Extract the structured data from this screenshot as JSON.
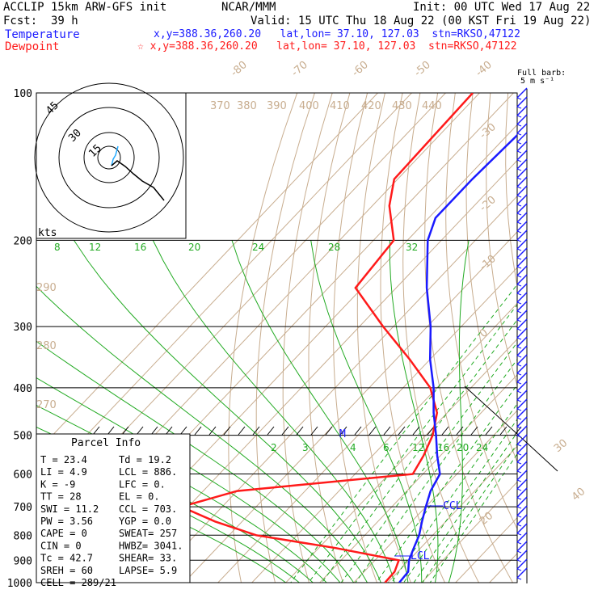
{
  "header": {
    "model": "ACCLIP 15km ARW-GFS init",
    "center": "NCAR/MMM",
    "init": "Init: 00 UTC Wed 17 Aug 22",
    "fcst_label": "Fcst:",
    "fcst_value": "39 h",
    "valid": "Valid: 15 UTC Thu 18 Aug 22 (00 KST Fri 19 Aug 22)",
    "temp_label": "Temperature",
    "temp_loc": "x,y=388.36,260.20   lat,lon= 37.10, 127.03  stn=RKSO,47122",
    "dew_label": "Dewpoint",
    "dew_loc": "☆ x,y=388.36,260.20   lat,lon= 37.10, 127.03  stn=RKSO,47122"
  },
  "barb_legend": {
    "line1": "Full barb:",
    "line2": "5 m s⁻¹"
  },
  "hodograph": {
    "rings": [
      "45",
      "30",
      "15"
    ],
    "unit": "kts"
  },
  "parcel_info": {
    "title": "Parcel Info",
    "rows": [
      [
        "T  =   23.4",
        "Td =  19.2"
      ],
      [
        "LI =    4.9",
        "LCL =  886."
      ],
      [
        "K  =     -9",
        "LFC =    0."
      ],
      [
        "TT =     28",
        "EL  =    0."
      ],
      [
        "SWI =  11.2",
        "CCL =  703."
      ],
      [
        "PW =   3.56",
        "YGP =  0.0"
      ],
      [
        "CAPE =    0",
        "SWEAT=  257"
      ],
      [
        "CIN =     0",
        "HWBZ= 3041."
      ],
      [
        "Tc =   42.7",
        "SHEAR=  33."
      ],
      [
        "SREH =   60",
        "LAPSE=  5.9"
      ],
      [
        "CELL = 289/21",
        ""
      ]
    ]
  },
  "markers": {
    "m": "M",
    "ccl": "CCL",
    "lcl": "LCL"
  },
  "colors": {
    "temperature": "#1a1aff",
    "dewpoint": "#ff1a1a",
    "mixing_ratio": "#22aa22",
    "grid_tan": "#c8ad8f"
  },
  "chart_data": {
    "type": "line",
    "title": "",
    "xlabel": "",
    "ylabel": "",
    "pressure_levels": [
      "100",
      "200",
      "300",
      "400",
      "500",
      "600",
      "700",
      "800",
      "900",
      "1000"
    ],
    "isotherm_labels": [
      "-80",
      "-70",
      "-60",
      "-50",
      "-40",
      "-30",
      "-20",
      "-10",
      "0",
      "10",
      "20",
      "30",
      "40"
    ],
    "theta_labels": [
      "370",
      "380",
      "390",
      "400",
      "410",
      "420",
      "430",
      "440",
      "290",
      "280",
      "270"
    ],
    "mixing_ratio_labels_upper": [
      "8",
      "12",
      "16",
      "20",
      "24",
      "28",
      "32"
    ],
    "mixing_ratio_labels_lower": [
      "2",
      "3",
      "4",
      "6",
      "8",
      "12",
      "16",
      "20",
      "24"
    ],
    "series": [
      {
        "name": "Temperature",
        "values": [
          [
            100,
            -73
          ],
          [
            120,
            -67
          ],
          [
            150,
            -68
          ],
          [
            180,
            -68
          ],
          [
            200,
            -64
          ],
          [
            250,
            -51
          ],
          [
            300,
            -39
          ],
          [
            350,
            -30
          ],
          [
            400,
            -21
          ],
          [
            450,
            -14
          ],
          [
            500,
            -7
          ],
          [
            550,
            -1
          ],
          [
            600,
            5
          ],
          [
            650,
            7
          ],
          [
            700,
            10
          ],
          [
            750,
            13
          ],
          [
            800,
            16
          ],
          [
            850,
            18
          ],
          [
            900,
            20
          ],
          [
            950,
            23
          ],
          [
            1000,
            23.4
          ]
        ]
      },
      {
        "name": "Dewpoint",
        "values": [
          [
            100,
            -92
          ],
          [
            150,
            -91
          ],
          [
            170,
            -85
          ],
          [
            200,
            -74
          ],
          [
            250,
            -72
          ],
          [
            300,
            -53
          ],
          [
            350,
            -36
          ],
          [
            400,
            -22
          ],
          [
            450,
            -13
          ],
          [
            500,
            -8
          ],
          [
            550,
            -5
          ],
          [
            600,
            -3
          ],
          [
            650,
            -50
          ],
          [
            700,
            -62
          ],
          [
            750,
            -48
          ],
          [
            800,
            -32
          ],
          [
            850,
            -5
          ],
          [
            900,
            17
          ],
          [
            950,
            19
          ],
          [
            1000,
            19.2
          ]
        ]
      }
    ]
  }
}
